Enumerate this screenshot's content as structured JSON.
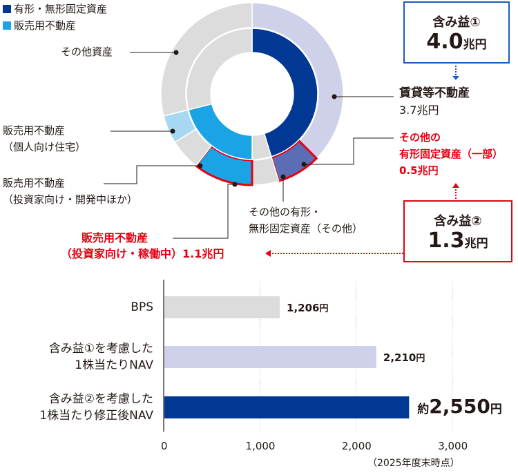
{
  "legend": [
    {
      "label": "有形・無形固定資産",
      "color": "#003894"
    },
    {
      "label": "販売用不動産",
      "color": "#1aa4e6"
    }
  ],
  "donut_labels": {
    "other_assets": "その他資産",
    "rental_property": "賃貸等不動産",
    "rental_value": "3.7兆円",
    "other_fixed_part_1": "その他の",
    "other_fixed_part_2": "有形固定資産（一部）",
    "other_fixed_part_value": "0.5兆円",
    "resale_individual_1": "販売用不動産",
    "resale_individual_2": "（個人向け住宅）",
    "resale_investor_dev_1": "販売用不動産",
    "resale_investor_dev_2": "（投資家向け・開発中ほか）",
    "other_fixed_other_1": "その他の有形・",
    "other_fixed_other_2": "無形固定資産（その他）",
    "resale_operating_1": "販売用不動産",
    "resale_operating_2": "（投資家向け・稼働中）1.1兆円"
  },
  "gain_box_1": {
    "title": "含み益①",
    "value": "4.0",
    "unit": "兆円"
  },
  "gain_box_2": {
    "title": "含み益②",
    "value": "1.3",
    "unit": "兆円"
  },
  "colors": {
    "navy": "#003894",
    "slate": "#5b6db5",
    "lavender": "#cfd1ea",
    "cyan": "#1aa4e6",
    "light_cyan": "#a6d8f3",
    "gray": "#dcdcdc",
    "red": "#e60012",
    "blue_arrow": "#1a5bbf"
  },
  "chart_data": {
    "type": "bar",
    "orientation": "horizontal",
    "categories": [
      "BPS",
      "含み益①を考慮した|1株当たりNAV",
      "含み益②を考慮した|1株当たり修正後NAV"
    ],
    "values": [
      1206,
      2210,
      2550
    ],
    "value_labels": [
      {
        "prefix": "",
        "value": "1,206",
        "unit": "円"
      },
      {
        "prefix": "",
        "value": "2,210",
        "unit": "円"
      },
      {
        "prefix": "約",
        "value": "2,550",
        "unit": "円"
      }
    ],
    "bar_colors": [
      "#dcdcdc",
      "#cfd1ea",
      "#003894"
    ],
    "xlim": [
      0,
      3000
    ],
    "xticks": [
      0,
      1000,
      2000,
      3000
    ],
    "xtick_labels": [
      "0",
      "1,000",
      "2,000",
      "3,000"
    ],
    "note": "（2025年度末時点）"
  }
}
